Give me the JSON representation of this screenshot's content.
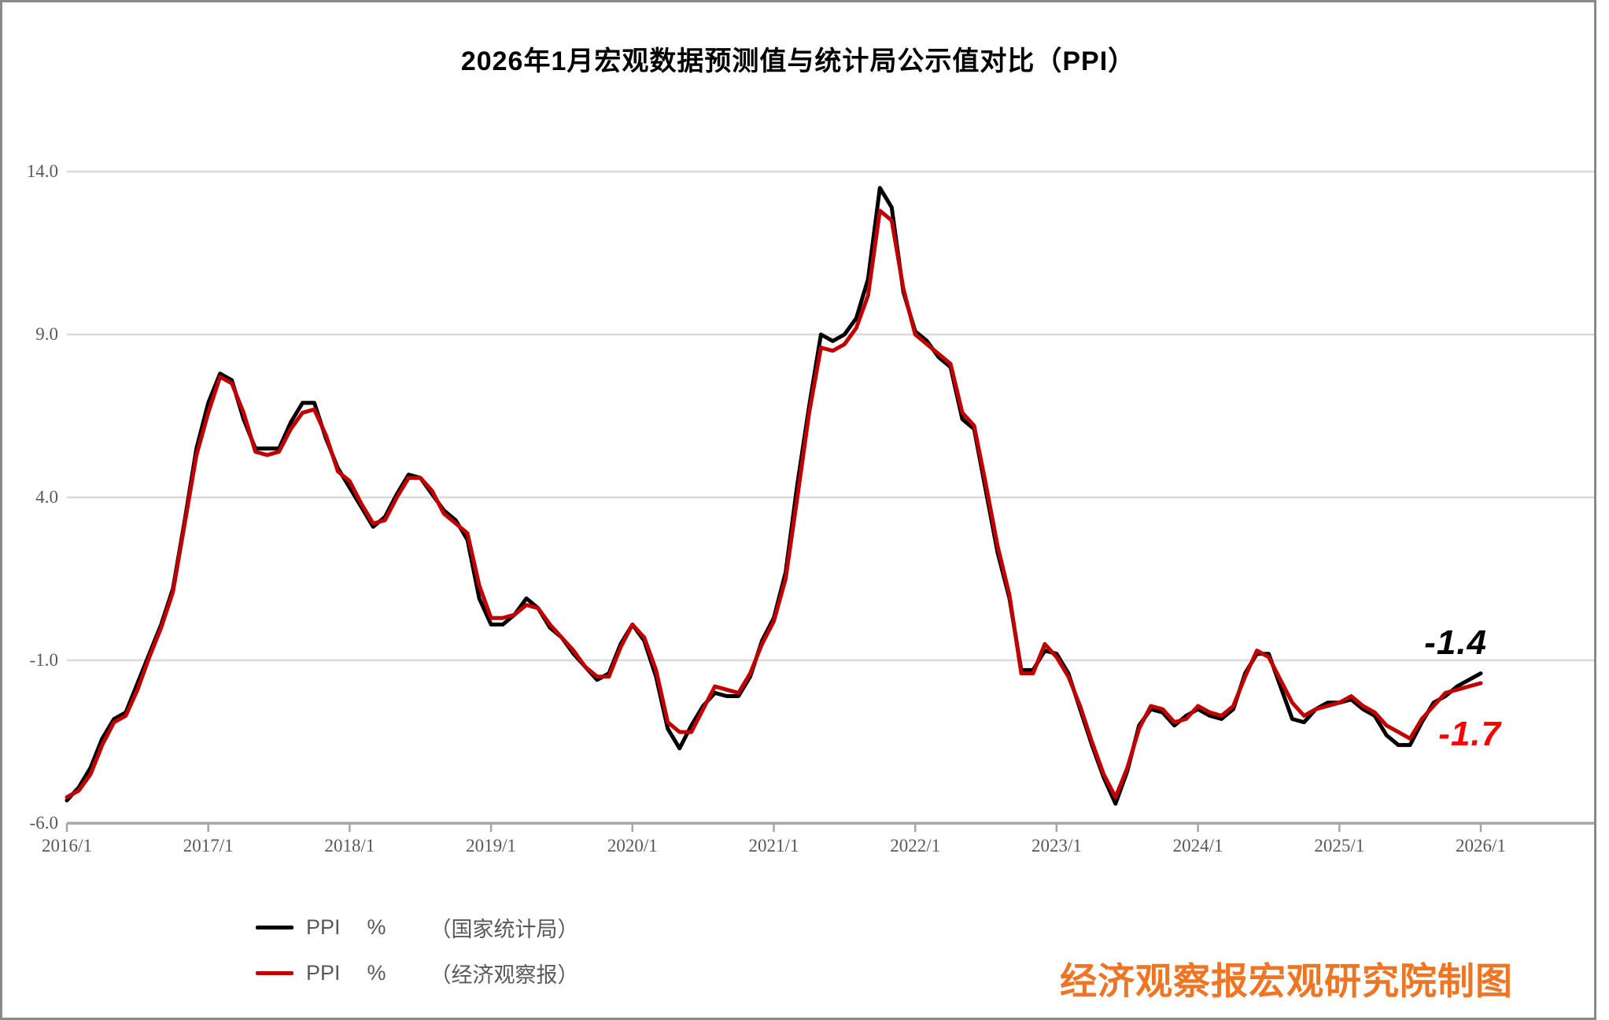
{
  "title": "2026年1月宏观数据预测值与统计局公示值对比（PPI）",
  "credit": "经济观察报宏观研究院制图",
  "annotations": {
    "nbs_last_value": "-1.4",
    "forecast_last_value": "-1.7"
  },
  "legend": [
    {
      "series": "PPI",
      "unit": "%",
      "source": "（国家统计局）",
      "color": "#000000"
    },
    {
      "series": "PPI",
      "unit": "%",
      "source": "（经济观察报）",
      "color": "#c00000"
    }
  ],
  "colors": {
    "nbs_line": "#000000",
    "forecast_line": "#c00000",
    "nbs_annotation": "#000000",
    "forecast_annotation": "#fe0000",
    "gridline": "#d9d9d9",
    "axis": "#a6a6a6",
    "tick_label": "#595959",
    "credit_orange": "#ed7524",
    "frame_gray": "#8a8a8a"
  },
  "chart_data": {
    "type": "line",
    "title": "2026年1月宏观数据预测值与统计局公示值对比（PPI）",
    "unit": "%",
    "frequency": "monthly",
    "x_start": "2016/1",
    "x_end": "2026/1",
    "x_tick_labels": [
      "2016/1",
      "2017/1",
      "2018/1",
      "2019/1",
      "2020/1",
      "2021/1",
      "2022/1",
      "2023/1",
      "2024/1",
      "2025/1",
      "2026/1"
    ],
    "y_ticks": [
      14.0,
      9.0,
      4.0,
      -1.0,
      -6.0
    ],
    "y_tick_labels": [
      "14.0",
      "9.0",
      "4.0",
      "-1.0",
      "-6.0"
    ],
    "ylim": [
      -6.0,
      14.0
    ],
    "grid": "horizontal",
    "legend_position": "bottom-left",
    "series": [
      {
        "name": "PPI %（国家统计局）",
        "color": "#000000",
        "values": [
          -5.3,
          -4.9,
          -4.3,
          -3.4,
          -2.8,
          -2.6,
          -1.7,
          -0.8,
          0.1,
          1.2,
          3.3,
          5.5,
          6.9,
          7.8,
          7.6,
          6.4,
          5.5,
          5.5,
          5.5,
          6.3,
          6.9,
          6.9,
          5.8,
          4.9,
          4.3,
          3.7,
          3.1,
          3.4,
          4.1,
          4.7,
          4.6,
          4.1,
          3.6,
          3.3,
          2.7,
          0.9,
          0.1,
          0.1,
          0.4,
          0.9,
          0.6,
          0.0,
          -0.3,
          -0.8,
          -1.2,
          -1.6,
          -1.4,
          -0.5,
          0.1,
          -0.4,
          -1.5,
          -3.1,
          -3.7,
          -3.0,
          -2.4,
          -2.0,
          -2.1,
          -2.1,
          -1.5,
          -0.4,
          0.3,
          1.7,
          4.4,
          6.8,
          9.0,
          8.8,
          9.0,
          9.5,
          10.7,
          13.5,
          12.9,
          10.3,
          9.1,
          8.8,
          8.3,
          8.0,
          6.4,
          6.1,
          4.2,
          2.3,
          0.9,
          -1.3,
          -1.3,
          -0.7,
          -0.8,
          -1.4,
          -2.5,
          -3.6,
          -4.6,
          -5.4,
          -4.4,
          -3.0,
          -2.5,
          -2.6,
          -3.0,
          -2.7,
          -2.5,
          -2.7,
          -2.8,
          -2.5,
          -1.4,
          -0.8,
          -0.8,
          -1.8,
          -2.8,
          -2.9,
          -2.5,
          -2.3,
          -2.3,
          -2.2,
          -2.5,
          -2.7,
          -3.3,
          -3.6,
          -3.6,
          -2.9,
          -2.3,
          -2.1,
          -1.8,
          -1.6,
          -1.4
        ]
      },
      {
        "name": "PPI %（经济观察报）",
        "color": "#c00000",
        "values": [
          -5.2,
          -5.0,
          -4.5,
          -3.6,
          -2.9,
          -2.7,
          -1.9,
          -0.9,
          0.0,
          1.1,
          3.2,
          5.3,
          6.6,
          7.7,
          7.5,
          6.6,
          5.4,
          5.3,
          5.4,
          6.1,
          6.6,
          6.7,
          5.9,
          4.8,
          4.5,
          3.8,
          3.2,
          3.3,
          4.0,
          4.6,
          4.6,
          4.2,
          3.5,
          3.2,
          2.9,
          1.3,
          0.3,
          0.3,
          0.4,
          0.7,
          0.6,
          0.1,
          -0.3,
          -0.7,
          -1.2,
          -1.5,
          -1.5,
          -0.6,
          0.1,
          -0.3,
          -1.3,
          -2.9,
          -3.2,
          -3.2,
          -2.5,
          -1.8,
          -1.9,
          -2.0,
          -1.4,
          -0.5,
          0.2,
          1.5,
          4.0,
          6.6,
          8.6,
          8.5,
          8.7,
          9.2,
          10.2,
          12.8,
          12.5,
          10.4,
          9.0,
          8.7,
          8.4,
          8.1,
          6.6,
          6.2,
          4.4,
          2.5,
          1.0,
          -1.4,
          -1.4,
          -0.5,
          -0.9,
          -1.5,
          -2.4,
          -3.5,
          -4.5,
          -5.2,
          -4.3,
          -3.1,
          -2.4,
          -2.5,
          -2.9,
          -2.8,
          -2.4,
          -2.6,
          -2.7,
          -2.4,
          -1.5,
          -0.7,
          -0.9,
          -1.6,
          -2.3,
          -2.7,
          -2.5,
          -2.4,
          -2.3,
          -2.1,
          -2.4,
          -2.6,
          -3.0,
          -3.2,
          -3.4,
          -2.8,
          -2.4,
          -2.0,
          -1.9,
          -1.8,
          -1.7
        ]
      }
    ]
  }
}
